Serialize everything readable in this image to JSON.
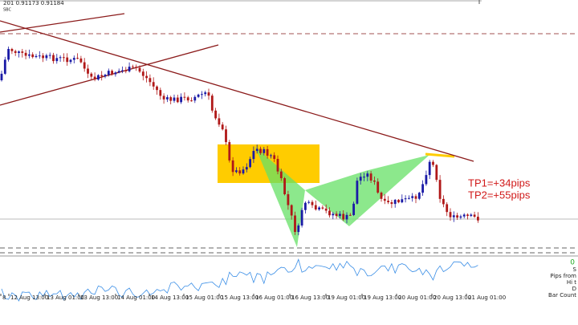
{
  "header": {
    "quote": "201 0.91173 0.91184",
    "subtitle": "SBC"
  },
  "annotations": {
    "tp1": "TP1=+34pips",
    "tp2": "TP2=+55pips"
  },
  "indicator_panel": {
    "value": "0",
    "labels": [
      "S",
      "Pips from",
      "Hi t",
      "D",
      "Bar Count"
    ]
  },
  "x_axis": {
    "labels": [
      "8",
      "12 Aug 13:00",
      "13 Aug 01:00",
      "13 Aug 13:00",
      "14 Aug 01:00",
      "14 Aug 13:00",
      "15 Aug 01:00",
      "15 Aug 13:00",
      "16 Aug 01:00",
      "16 Aug 13:00",
      "19 Aug 01:00",
      "19 Aug 13:00",
      "20 Aug 01:00",
      "20 Aug 13:00",
      "21 Aug 01:00"
    ]
  }
}
